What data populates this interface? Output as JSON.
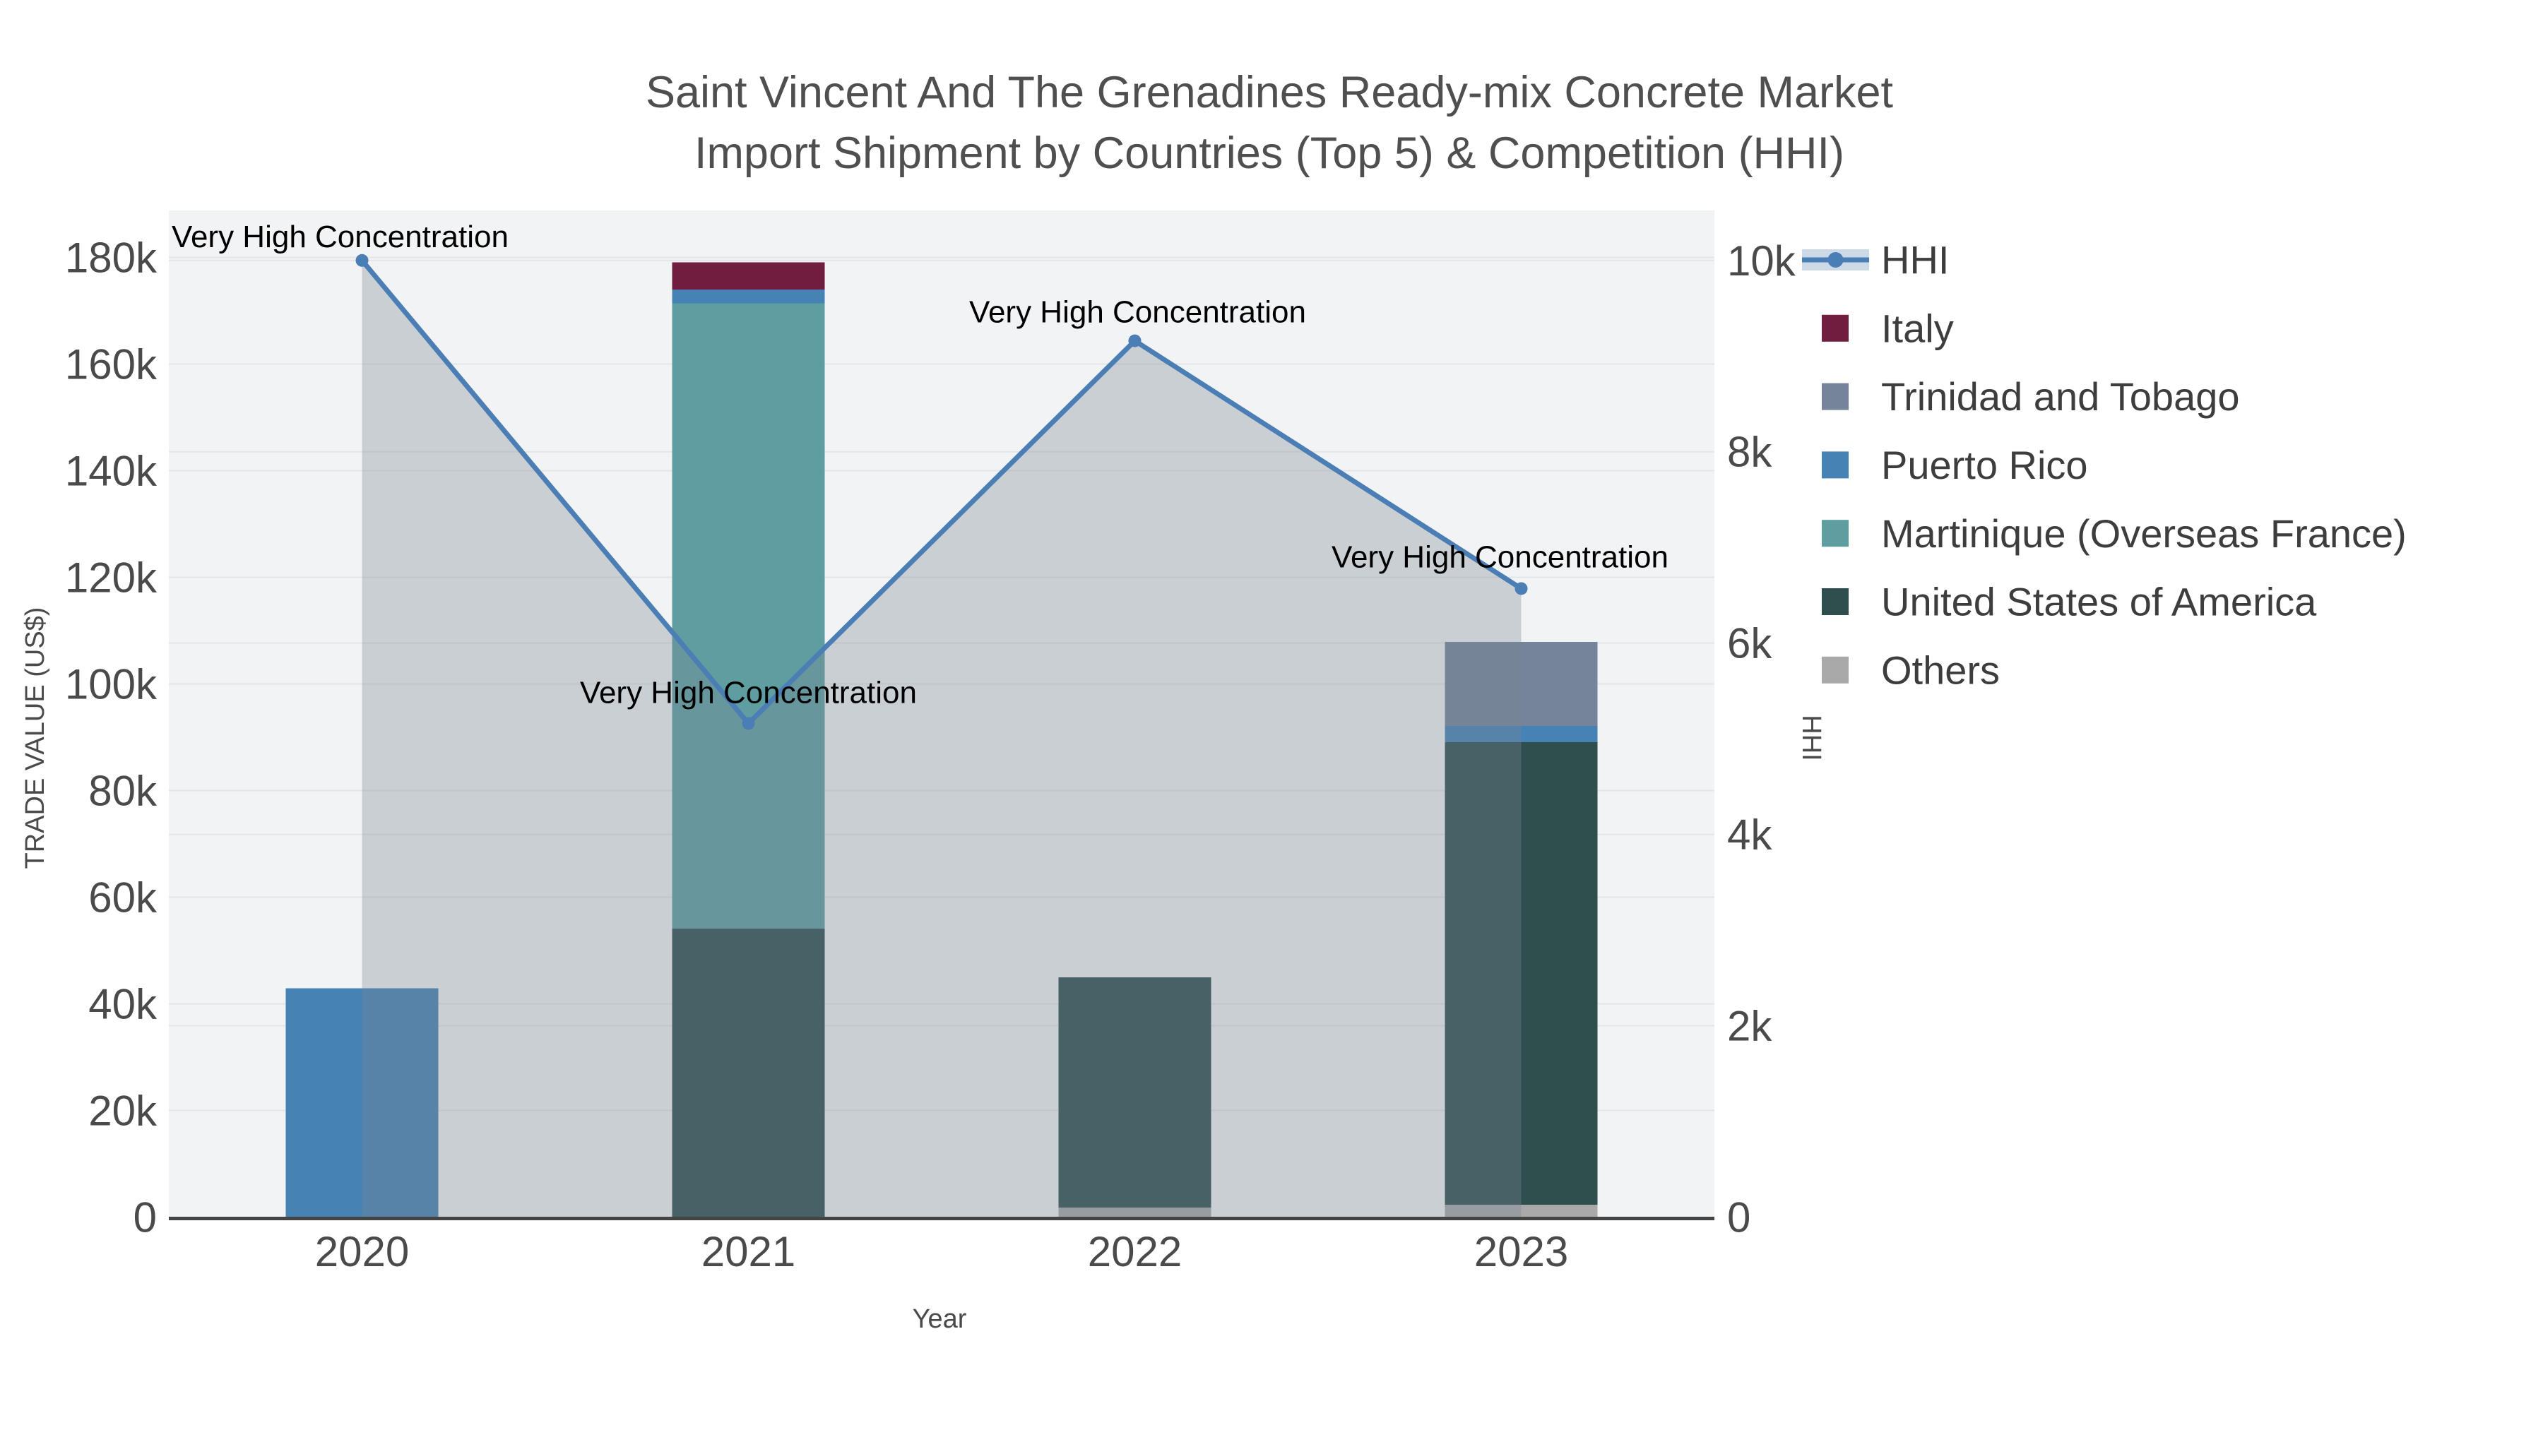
{
  "title": {
    "line1": "Saint Vincent And The Grenadines Ready-mix Concrete Market",
    "line2": "Import Shipment by Countries (Top 5) & Competition (HHI)"
  },
  "chart_data": {
    "type": "bar+line",
    "categories": [
      "2020",
      "2021",
      "2022",
      "2023"
    ],
    "bar_series": [
      {
        "name": "Others",
        "color": "#a9a9a9",
        "values": [
          0,
          0,
          1800,
          2300
        ]
      },
      {
        "name": "United States of America",
        "color": "#2f4f4f",
        "values": [
          0,
          54100,
          43200,
          86800
        ]
      },
      {
        "name": "Martinique (Overseas France)",
        "color": "#5f9ea0",
        "values": [
          0,
          117300,
          0,
          0
        ]
      },
      {
        "name": "Puerto Rico",
        "color": "#4682b4",
        "values": [
          42900,
          2600,
          0,
          3000
        ]
      },
      {
        "name": "Trinidad and Tobago",
        "color": "#75849a",
        "values": [
          0,
          0,
          0,
          15800
        ]
      },
      {
        "name": "Italy",
        "color": "#701d40",
        "values": [
          0,
          5100,
          0,
          0
        ]
      }
    ],
    "line_series": {
      "name": "HHI",
      "color": "#4a7eb5",
      "area_fill": "rgba(120,133,150,0.33)",
      "axis": "right",
      "values": [
        10000,
        5160,
        9160,
        6570
      ]
    },
    "annotations": [
      {
        "x_index": 0,
        "text": "Very High Concentration"
      },
      {
        "x_index": 1,
        "text": "Very High Concentration"
      },
      {
        "x_index": 2,
        "text": "Very High Concentration"
      },
      {
        "x_index": 3,
        "text": "Very High Concentration"
      }
    ],
    "left_axis": {
      "title": "TRADE VALUE (US$)",
      "tick_labels": [
        "0",
        "20k",
        "40k",
        "60k",
        "80k",
        "100k",
        "120k",
        "140k",
        "160k",
        "180k"
      ],
      "tick_values": [
        0,
        20000,
        40000,
        60000,
        80000,
        100000,
        120000,
        140000,
        160000,
        180000
      ],
      "max": 180000
    },
    "right_axis": {
      "title": "HHI",
      "tick_labels": [
        "0",
        "2k",
        "4k",
        "6k",
        "8k",
        "10k"
      ],
      "tick_values": [
        0,
        2000,
        4000,
        6000,
        8000,
        10000
      ],
      "max": 10000
    },
    "x_axis": {
      "title": "Year"
    },
    "grid": true,
    "legend_position": "right"
  },
  "legend": {
    "items": [
      {
        "label": "HHI",
        "type": "line",
        "color": "#4a7eb5",
        "band_color": "#ccd9e7"
      },
      {
        "label": "Italy",
        "type": "swatch",
        "color": "#701d40"
      },
      {
        "label": "Trinidad and Tobago",
        "type": "swatch",
        "color": "#75849a"
      },
      {
        "label": "Puerto Rico",
        "type": "swatch",
        "color": "#4682b4"
      },
      {
        "label": "Martinique (Overseas France)",
        "type": "swatch",
        "color": "#5f9ea0"
      },
      {
        "label": "United States of America",
        "type": "swatch",
        "color": "#2f4f4f"
      },
      {
        "label": "Others",
        "type": "swatch",
        "color": "#a9a9a9"
      }
    ]
  },
  "colors": {
    "plot_background": "#f2f3f4",
    "gridline": "#e4e5e7",
    "axis_line": "#444444",
    "tick_text": "#4a4a4a",
    "title_text": "#4f4f4f",
    "legend_text": "#3d3d3d",
    "annotation_text": "#000000"
  }
}
